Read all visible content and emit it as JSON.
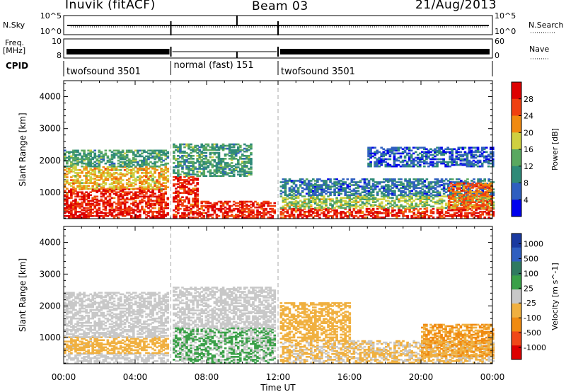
{
  "header": {
    "title": "Inuvik (fitACF)",
    "beam": "Beam 03",
    "date": "21/Aug/2013"
  },
  "status_panels": {
    "nsky_label": "N.Sky",
    "nsky_ticks": [
      "10^5",
      "10^0"
    ],
    "nsearch_label": "N.Search",
    "nsearch_ticks": [
      "10^5",
      "10^0"
    ],
    "freq_label": "Freq.",
    "freq_unit": "[MHz]",
    "freq_ticks": [
      "10",
      "8"
    ],
    "nave_label": "Nave",
    "nave_ticks": [
      "60",
      "0"
    ],
    "cpid_label": "CPID",
    "cpid_segments": [
      {
        "name": "twofsound 3501",
        "start_h": 0,
        "end_h": 6
      },
      {
        "name": "normal (fast) 151",
        "start_h": 6,
        "end_h": 12
      },
      {
        "name": "twofsound 3501",
        "start_h": 12,
        "end_h": 24
      }
    ],
    "gap_hours": [
      6,
      12
    ],
    "spike_hours": [
      9.7
    ]
  },
  "chart_data": [
    {
      "type": "heatmap",
      "title": "",
      "xlabel": "Time UT",
      "ylabel": "Slant Range [km]",
      "xlim": [
        0,
        24
      ],
      "ylim": [
        180,
        4500
      ],
      "x_ticks": [
        "00:00",
        "04:00",
        "08:00",
        "12:00",
        "16:00",
        "20:00",
        "00:00"
      ],
      "y_ticks": [
        "1000",
        "2000",
        "3000",
        "4000"
      ],
      "colorbar": {
        "label": "Power [dB]",
        "ticks": [
          "4",
          "8",
          "12",
          "16",
          "20",
          "24",
          "28"
        ],
        "range": [
          0,
          32
        ],
        "colors": [
          "#0000ee",
          "#2f5fc0",
          "#2f8a78",
          "#5aa860",
          "#cfd040",
          "#f08a10",
          "#f04010",
          "#dd0000"
        ]
      },
      "scatter_regions": [
        {
          "t0": 0,
          "t1": 5.8,
          "r0": 200,
          "r1": 450,
          "value": 30
        },
        {
          "t0": 0,
          "t1": 5.8,
          "r0": 450,
          "r1": 1100,
          "value": 28
        },
        {
          "t0": 0,
          "t1": 5.8,
          "r0": 1100,
          "r1": 1800,
          "value": 20
        },
        {
          "t0": 0,
          "t1": 5.8,
          "r0": 1800,
          "r1": 2300,
          "value": 12
        },
        {
          "t0": 6.1,
          "t1": 7.5,
          "r0": 700,
          "r1": 1500,
          "value": 28
        },
        {
          "t0": 6.1,
          "t1": 11.8,
          "r0": 200,
          "r1": 700,
          "value": 28
        },
        {
          "t0": 6.1,
          "t1": 10.5,
          "r0": 1500,
          "r1": 2500,
          "value": 12
        },
        {
          "t0": 12.1,
          "t1": 24,
          "r0": 200,
          "r1": 500,
          "value": 28
        },
        {
          "t0": 12.1,
          "t1": 24,
          "r0": 500,
          "r1": 900,
          "value": 16
        },
        {
          "t0": 12.1,
          "t1": 24,
          "r0": 900,
          "r1": 1400,
          "value": 8
        },
        {
          "t0": 21.5,
          "t1": 24,
          "r0": 500,
          "r1": 1300,
          "value": 24
        },
        {
          "t0": 17,
          "t1": 24,
          "r0": 1800,
          "r1": 2400,
          "value": 6
        }
      ]
    },
    {
      "type": "heatmap",
      "title": "",
      "xlabel": "Time UT",
      "ylabel": "Slant Range [km]",
      "xlim": [
        0,
        24
      ],
      "ylim": [
        180,
        4500
      ],
      "x_ticks": [
        "00:00",
        "04:00",
        "08:00",
        "12:00",
        "16:00",
        "20:00",
        "00:00"
      ],
      "y_ticks": [
        "1000",
        "2000",
        "3000",
        "4000"
      ],
      "colorbar": {
        "label": "Velocity [m s^-1]",
        "ticks": [
          "1000",
          "500",
          "100",
          "25",
          "-25",
          "-100",
          "-500",
          "-1000"
        ],
        "range": [
          -1200,
          1200
        ],
        "colors": [
          "#dd0000",
          "#f04818",
          "#f08a10",
          "#f0b040",
          "#c8c8c8",
          "#3aa048",
          "#2f7a60",
          "#2f5fc0",
          "#1a3aa0"
        ]
      },
      "scatter_regions": [
        {
          "t0": 0,
          "t1": 5.8,
          "r0": 200,
          "r1": 500,
          "value": -20
        },
        {
          "t0": 0,
          "t1": 5.8,
          "r0": 500,
          "r1": 1000,
          "value": -200
        },
        {
          "t0": 0,
          "t1": 5.8,
          "r0": 1000,
          "r1": 2400,
          "value": 10
        },
        {
          "t0": 6.1,
          "t1": 11.8,
          "r0": 200,
          "r1": 1300,
          "value": 150
        },
        {
          "t0": 6.1,
          "t1": 11.8,
          "r0": 1300,
          "r1": 2600,
          "value": 0
        },
        {
          "t0": 12.1,
          "t1": 24,
          "r0": 200,
          "r1": 900,
          "value": -150
        },
        {
          "t0": 12.1,
          "t1": 16,
          "r0": 900,
          "r1": 2100,
          "value": -300
        },
        {
          "t0": 20,
          "t1": 24,
          "r0": 400,
          "r1": 1400,
          "value": -400
        }
      ]
    }
  ]
}
